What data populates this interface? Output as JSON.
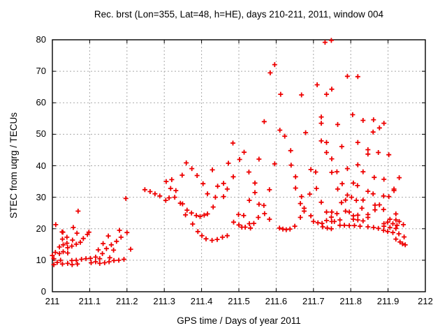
{
  "chart_data": {
    "type": "scatter",
    "title": "Rec. brst (Lon=355, Lat=48, h=HE), days 210-211, 2011, window 004",
    "xlabel": "GPS time / Days of year 2011",
    "ylabel": "STEC from uqrg / TECUs",
    "xlim": [
      211,
      212
    ],
    "ylim": [
      0,
      80
    ],
    "xticks": [
      211,
      211.1,
      211.2,
      211.3,
      211.4,
      211.5,
      211.6,
      211.7,
      211.8,
      211.9,
      212
    ],
    "yticks": [
      0,
      10,
      20,
      30,
      40,
      50,
      60,
      70,
      80
    ],
    "grid": "dashed",
    "legend": false,
    "marker": "plus",
    "marker_color": "#ee0000",
    "grid_color": "#a8a8a8",
    "axis_color": "#000000",
    "points": [
      [
        211.0,
        11.5
      ],
      [
        211.004,
        10.5
      ],
      [
        211.004,
        8.6
      ],
      [
        211.008,
        12.5
      ],
      [
        211.009,
        21.3
      ],
      [
        211.013,
        9.3
      ],
      [
        211.019,
        12.1
      ],
      [
        211.019,
        14.2
      ],
      [
        211.022,
        10.0
      ],
      [
        211.026,
        19.0
      ],
      [
        211.027,
        8.8
      ],
      [
        211.027,
        16.7
      ],
      [
        211.028,
        18.9
      ],
      [
        211.029,
        12.7
      ],
      [
        211.029,
        14.9
      ],
      [
        211.039,
        17.3
      ],
      [
        211.039,
        15.4
      ],
      [
        211.041,
        9.0
      ],
      [
        211.041,
        12.3
      ],
      [
        211.041,
        14.0
      ],
      [
        211.052,
        9.9
      ],
      [
        211.052,
        14.5
      ],
      [
        211.053,
        8.6
      ],
      [
        211.054,
        16.4
      ],
      [
        211.056,
        20.4
      ],
      [
        211.064,
        10.0
      ],
      [
        211.064,
        15.1
      ],
      [
        211.066,
        18.6
      ],
      [
        211.067,
        8.8
      ],
      [
        211.069,
        25.6
      ],
      [
        211.075,
        15.7
      ],
      [
        211.078,
        10.3
      ],
      [
        211.083,
        16.9
      ],
      [
        211.09,
        10.5
      ],
      [
        211.094,
        18.2
      ],
      [
        211.098,
        18.9
      ],
      [
        211.102,
        10.6
      ],
      [
        211.104,
        9.2
      ],
      [
        211.116,
        9.5
      ],
      [
        211.116,
        11.0
      ],
      [
        211.123,
        13.3
      ],
      [
        211.127,
        9.0
      ],
      [
        211.127,
        10.5
      ],
      [
        211.134,
        12.1
      ],
      [
        211.136,
        15.3
      ],
      [
        211.14,
        9.2
      ],
      [
        211.145,
        13.7
      ],
      [
        211.15,
        17.7
      ],
      [
        211.152,
        9.5
      ],
      [
        211.154,
        10.8
      ],
      [
        211.158,
        14.9
      ],
      [
        211.164,
        13.2
      ],
      [
        211.165,
        9.9
      ],
      [
        211.172,
        16.0
      ],
      [
        211.178,
        10.0
      ],
      [
        211.18,
        19.5
      ],
      [
        211.184,
        17.3
      ],
      [
        211.192,
        10.3
      ],
      [
        211.197,
        29.6
      ],
      [
        211.2,
        18.8
      ],
      [
        211.21,
        13.5
      ],
      [
        211.248,
        32.4
      ],
      [
        211.262,
        31.8
      ],
      [
        211.275,
        31.1
      ],
      [
        211.288,
        30.4
      ],
      [
        211.304,
        29.0
      ],
      [
        211.305,
        35.0
      ],
      [
        211.313,
        29.8
      ],
      [
        211.317,
        32.8
      ],
      [
        211.32,
        35.6
      ],
      [
        211.328,
        30.0
      ],
      [
        211.331,
        32.1
      ],
      [
        211.343,
        28.1
      ],
      [
        211.348,
        37.0
      ],
      [
        211.349,
        27.9
      ],
      [
        211.357,
        24.4
      ],
      [
        211.359,
        40.9
      ],
      [
        211.361,
        25.9
      ],
      [
        211.373,
        25.0
      ],
      [
        211.374,
        39.1
      ],
      [
        211.376,
        21.5
      ],
      [
        211.386,
        24.2
      ],
      [
        211.388,
        36.9
      ],
      [
        211.39,
        19.1
      ],
      [
        211.396,
        23.9
      ],
      [
        211.401,
        17.8
      ],
      [
        211.404,
        34.3
      ],
      [
        211.407,
        24.3
      ],
      [
        211.412,
        16.8
      ],
      [
        211.416,
        24.7
      ],
      [
        211.416,
        31.1
      ],
      [
        211.428,
        16.3
      ],
      [
        211.429,
        38.7
      ],
      [
        211.431,
        26.9
      ],
      [
        211.437,
        30.0
      ],
      [
        211.442,
        16.6
      ],
      [
        211.443,
        33.5
      ],
      [
        211.456,
        17.3
      ],
      [
        211.459,
        34.4
      ],
      [
        211.459,
        30.2
      ],
      [
        211.469,
        17.8
      ],
      [
        211.469,
        32.6
      ],
      [
        211.472,
        40.8
      ],
      [
        211.484,
        47.2
      ],
      [
        211.485,
        36.5
      ],
      [
        211.486,
        22.1
      ],
      [
        211.499,
        24.5
      ],
      [
        211.5,
        21.2
      ],
      [
        211.502,
        42.0
      ],
      [
        211.508,
        20.5
      ],
      [
        211.513,
        24.2
      ],
      [
        211.514,
        44.3
      ],
      [
        211.517,
        20.5
      ],
      [
        211.527,
        38.0
      ],
      [
        211.528,
        29.0
      ],
      [
        211.528,
        21.6
      ],
      [
        211.531,
        20.2
      ],
      [
        211.54,
        21.7
      ],
      [
        211.543,
        34.5
      ],
      [
        211.543,
        31.5
      ],
      [
        211.552,
        23.6
      ],
      [
        211.554,
        27.8
      ],
      [
        211.554,
        42.1
      ],
      [
        211.567,
        27.4
      ],
      [
        211.568,
        54.0
      ],
      [
        211.569,
        24.8
      ],
      [
        211.582,
        32.4
      ],
      [
        211.582,
        23.0
      ],
      [
        211.584,
        69.5
      ],
      [
        211.596,
        72.1
      ],
      [
        211.596,
        40.6
      ],
      [
        211.609,
        20.2
      ],
      [
        211.61,
        51.3
      ],
      [
        211.612,
        62.7
      ],
      [
        211.618,
        19.9
      ],
      [
        211.623,
        49.4
      ],
      [
        211.627,
        19.7
      ],
      [
        211.637,
        19.9
      ],
      [
        211.639,
        44.8
      ],
      [
        211.64,
        40.2
      ],
      [
        211.65,
        20.8
      ],
      [
        211.652,
        36.5
      ],
      [
        211.652,
        32.9
      ],
      [
        211.665,
        28.0
      ],
      [
        211.665,
        23.6
      ],
      [
        211.668,
        62.5
      ],
      [
        211.668,
        30.2
      ],
      [
        211.675,
        26.5
      ],
      [
        211.675,
        25.6
      ],
      [
        211.679,
        50.5
      ],
      [
        211.69,
        31.0
      ],
      [
        211.693,
        38.8
      ],
      [
        211.693,
        24.1
      ],
      [
        211.7,
        22.3
      ],
      [
        211.706,
        38.0
      ],
      [
        211.708,
        32.8
      ],
      [
        211.71,
        65.7
      ],
      [
        211.712,
        21.9
      ],
      [
        211.721,
        55.5
      ],
      [
        211.721,
        53.5
      ],
      [
        211.721,
        47.9
      ],
      [
        211.721,
        28.4
      ],
      [
        211.723,
        21.7
      ],
      [
        211.725,
        20.6
      ],
      [
        211.731,
        79.2
      ],
      [
        211.735,
        62.7
      ],
      [
        211.735,
        47.4
      ],
      [
        211.735,
        44.2
      ],
      [
        211.735,
        25.3
      ],
      [
        211.735,
        22.6
      ],
      [
        211.737,
        20.2
      ],
      [
        211.748,
        79.8
      ],
      [
        211.749,
        64.3
      ],
      [
        211.749,
        42.2
      ],
      [
        211.749,
        37.9
      ],
      [
        211.749,
        25.3
      ],
      [
        211.748,
        23.7
      ],
      [
        211.749,
        22.3
      ],
      [
        211.748,
        20.0
      ],
      [
        211.756,
        22.3
      ],
      [
        211.763,
        38.1
      ],
      [
        211.763,
        24.8
      ],
      [
        211.765,
        53.1
      ],
      [
        211.765,
        32.6
      ],
      [
        211.771,
        22.8
      ],
      [
        211.771,
        21.1
      ],
      [
        211.775,
        28.3
      ],
      [
        211.776,
        46.1
      ],
      [
        211.777,
        34.3
      ],
      [
        211.783,
        21.1
      ],
      [
        211.786,
        29.1
      ],
      [
        211.786,
        25.6
      ],
      [
        211.791,
        68.4
      ],
      [
        211.791,
        39.1
      ],
      [
        211.791,
        30.7
      ],
      [
        211.796,
        25.3
      ],
      [
        211.796,
        21.0
      ],
      [
        211.802,
        30.0
      ],
      [
        211.805,
        56.2
      ],
      [
        211.807,
        34.5
      ],
      [
        211.807,
        24.1
      ],
      [
        211.807,
        23.0
      ],
      [
        211.81,
        21.0
      ],
      [
        211.815,
        29.0
      ],
      [
        211.818,
        33.7
      ],
      [
        211.819,
        68.3
      ],
      [
        211.819,
        47.4
      ],
      [
        211.819,
        40.3
      ],
      [
        211.819,
        24.3
      ],
      [
        211.819,
        22.8
      ],
      [
        211.825,
        20.8
      ],
      [
        211.83,
        26.5
      ],
      [
        211.833,
        54.4
      ],
      [
        211.833,
        38.1
      ],
      [
        211.833,
        29.1
      ],
      [
        211.833,
        22.5
      ],
      [
        211.846,
        45.1
      ],
      [
        211.846,
        43.7
      ],
      [
        211.846,
        31.9
      ],
      [
        211.846,
        24.5
      ],
      [
        211.846,
        23.6
      ],
      [
        211.846,
        20.6
      ],
      [
        211.86,
        50.7
      ],
      [
        211.86,
        31.1
      ],
      [
        211.861,
        54.6
      ],
      [
        211.861,
        20.4
      ],
      [
        211.863,
        36.3
      ],
      [
        211.865,
        27.5
      ],
      [
        211.865,
        26.0
      ],
      [
        211.874,
        44.2
      ],
      [
        211.874,
        20.1
      ],
      [
        211.877,
        52.0
      ],
      [
        211.877,
        27.6
      ],
      [
        211.888,
        30.4
      ],
      [
        211.888,
        26.1
      ],
      [
        211.888,
        19.5
      ],
      [
        211.889,
        53.5
      ],
      [
        211.889,
        35.7
      ],
      [
        211.889,
        20.8
      ],
      [
        211.889,
        21.6
      ],
      [
        211.899,
        22.1
      ],
      [
        211.899,
        19.1
      ],
      [
        211.902,
        43.5
      ],
      [
        211.902,
        30.2
      ],
      [
        211.905,
        23.0
      ],
      [
        211.905,
        20.4
      ],
      [
        211.913,
        21.6
      ],
      [
        211.913,
        18.8
      ],
      [
        211.916,
        32.6
      ],
      [
        211.916,
        32.1
      ],
      [
        211.921,
        24.7
      ],
      [
        211.921,
        22.8
      ],
      [
        211.921,
        20.1
      ],
      [
        211.921,
        16.7
      ],
      [
        211.924,
        21.1
      ],
      [
        211.929,
        18.4
      ],
      [
        211.93,
        36.2
      ],
      [
        211.93,
        22.3
      ],
      [
        211.932,
        15.8
      ],
      [
        211.939,
        15.2
      ],
      [
        211.941,
        21.3
      ],
      [
        211.943,
        17.4
      ],
      [
        211.946,
        14.9
      ]
    ]
  }
}
